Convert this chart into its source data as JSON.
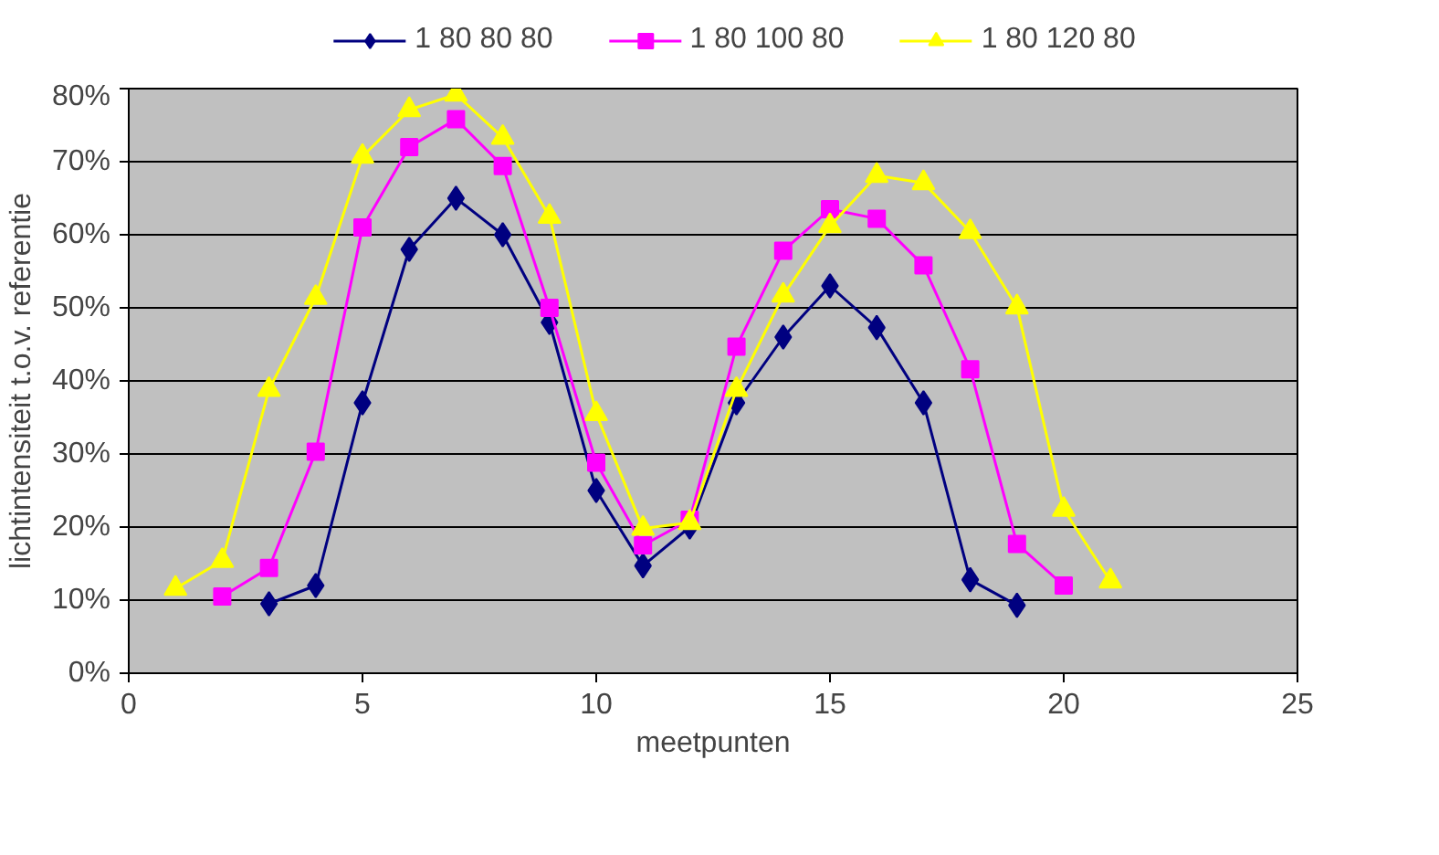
{
  "chart_data": {
    "type": "line",
    "xlabel": "meetpunten",
    "ylabel": "lichtintensiteit t.o.v. referentie",
    "xlim": [
      0,
      25
    ],
    "xticks": [
      0,
      5,
      10,
      15,
      20,
      25
    ],
    "ylim": [
      0,
      80
    ],
    "yticks": [
      {
        "value": 0,
        "label": "0%"
      },
      {
        "value": 10,
        "label": "10%"
      },
      {
        "value": 20,
        "label": "20%"
      },
      {
        "value": 30,
        "label": "30%"
      },
      {
        "value": 40,
        "label": "40%"
      },
      {
        "value": 50,
        "label": "50%"
      },
      {
        "value": 60,
        "label": "60%"
      },
      {
        "value": 70,
        "label": "70%"
      },
      {
        "value": 80,
        "label": "80%"
      }
    ],
    "grid": "y",
    "legend": "top",
    "line_style": "solid",
    "series": [
      {
        "name": "1 80 80 80",
        "color": "#000080",
        "marker": "diamond",
        "x": [
          3,
          4,
          5,
          6,
          7,
          8,
          9,
          10,
          11,
          12,
          13,
          14,
          15,
          16,
          17,
          18,
          19
        ],
        "values": [
          9.5,
          12,
          37,
          58,
          65,
          60,
          48,
          25,
          14.7,
          20,
          37,
          46,
          53,
          47.3,
          37,
          12.8,
          9.3
        ]
      },
      {
        "name": "1 80 100 80",
        "color": "#ff00ff",
        "marker": "square",
        "x": [
          2,
          3,
          4,
          5,
          6,
          7,
          8,
          9,
          10,
          11,
          12,
          13,
          14,
          15,
          16,
          17,
          18,
          19,
          20
        ],
        "values": [
          10.5,
          14.4,
          30.3,
          61,
          72,
          75.8,
          69.4,
          50,
          28.8,
          17.5,
          21,
          44.7,
          57.8,
          63.5,
          62.2,
          55.8,
          41.6,
          17.7,
          12
        ]
      },
      {
        "name": "1 80 120 80",
        "color": "#ffff00",
        "marker": "triangle",
        "x": [
          1,
          2,
          3,
          4,
          5,
          6,
          7,
          8,
          9,
          10,
          11,
          12,
          13,
          14,
          15,
          16,
          17,
          18,
          19,
          20,
          21
        ],
        "values": [
          11.6,
          15.4,
          38.8,
          51.4,
          70.7,
          77.1,
          79.2,
          73.3,
          62.5,
          35.5,
          19.8,
          20.6,
          38.8,
          51.7,
          61.2,
          68.1,
          67.1,
          60.4,
          50.1,
          22.4,
          12.6
        ]
      }
    ]
  }
}
